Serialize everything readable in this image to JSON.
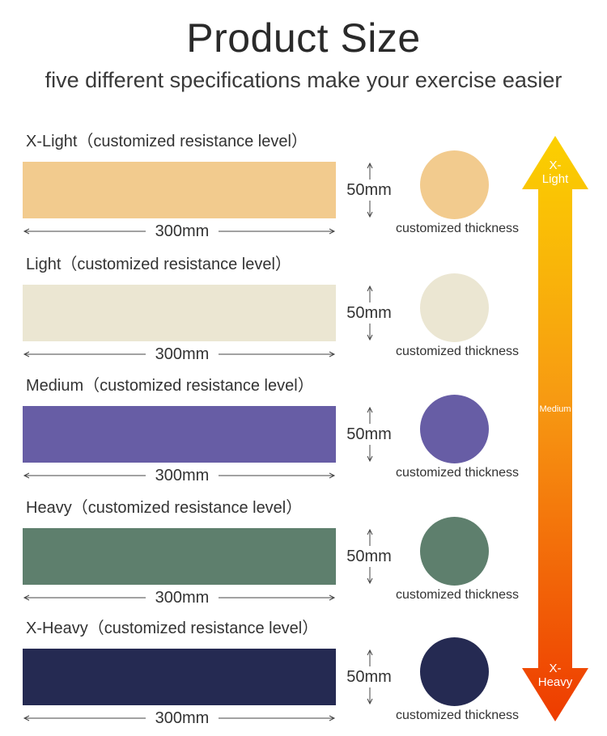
{
  "header": {
    "title": "Product Size",
    "subtitle": "five different specifications make your exercise easier"
  },
  "bands": [
    {
      "level": "X-Light",
      "suffix": "（customized resistance level）",
      "color": "#f2cb8e",
      "length": "300mm",
      "width": "50mm",
      "thickness": "customized thickness"
    },
    {
      "level": "Light",
      "suffix": "（customized resistance level）",
      "color": "#ebe6d2",
      "length": "300mm",
      "width": "50mm",
      "thickness": "customized thickness"
    },
    {
      "level": "Medium",
      "suffix": "（customized resistance level）",
      "color": "#675da5",
      "length": "300mm",
      "width": "50mm",
      "thickness": "customized thickness"
    },
    {
      "level": "Heavy",
      "suffix": "（customized resistance level）",
      "color": "#5e7f6d",
      "length": "300mm",
      "width": "50mm",
      "thickness": "customized thickness"
    },
    {
      "level": "X-Heavy",
      "suffix": "（customized resistance level）",
      "color": "#252a52",
      "length": "300mm",
      "width": "50mm",
      "thickness": "customized thickness"
    }
  ],
  "scale": {
    "top_line1": "X-",
    "top_line2": "Light",
    "middle": "Medium",
    "bottom_line1": "X-",
    "bottom_line2": "Heavy",
    "color_top": "#fbd000",
    "color_mid": "#f79a12",
    "color_bottom": "#ee3b00"
  }
}
